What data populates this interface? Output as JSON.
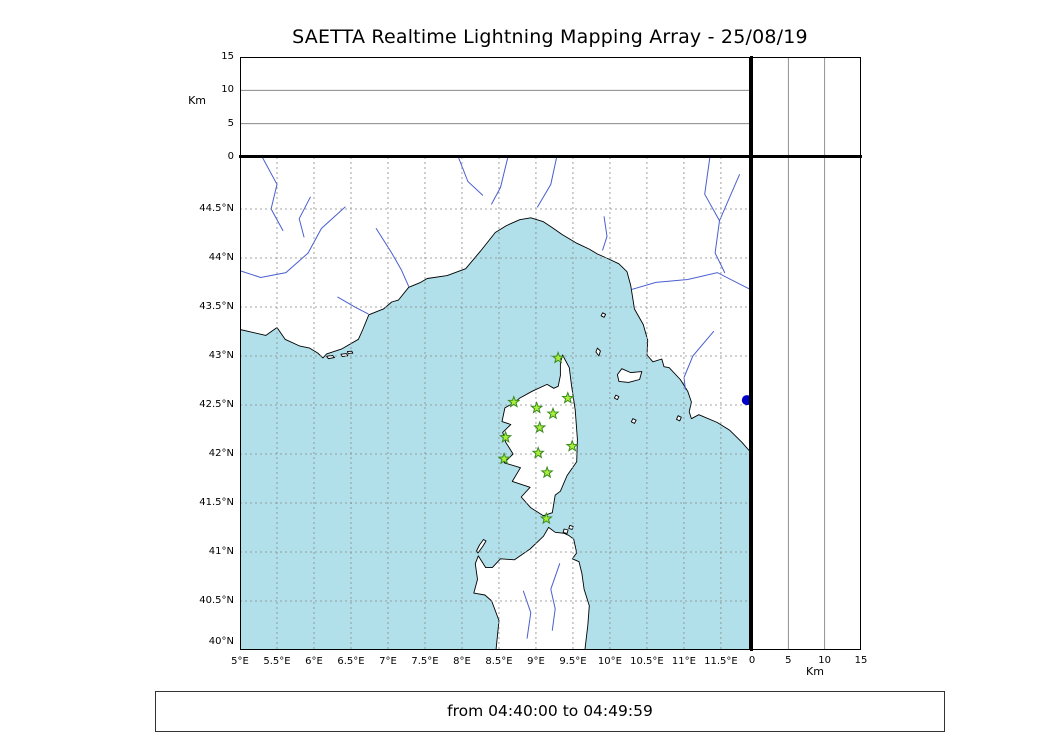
{
  "title": "SAETTA Realtime Lightning Mapping Array - 25/08/19",
  "footer": {
    "text": "from 04:40:00 to 04:49:59"
  },
  "alt_axis": {
    "label": "Km",
    "max": 15,
    "ticks": [
      0,
      5,
      10,
      15
    ]
  },
  "map": {
    "lon_range": [
      5.0,
      11.893
    ],
    "lat_range": [
      40.0,
      45.031
    ],
    "lon_ticks": [
      {
        "value": 5,
        "label": "5°E"
      },
      {
        "value": 5.5,
        "label": "5.5°E"
      },
      {
        "value": 6,
        "label": "6°E"
      },
      {
        "value": 6.5,
        "label": "6.5°E"
      },
      {
        "value": 7,
        "label": "7°E"
      },
      {
        "value": 7.5,
        "label": "7.5°E"
      },
      {
        "value": 8,
        "label": "8°E"
      },
      {
        "value": 8.5,
        "label": "8.5°E"
      },
      {
        "value": 9,
        "label": "9°E"
      },
      {
        "value": 9.5,
        "label": "9.5°E"
      },
      {
        "value": 10,
        "label": "10°E"
      },
      {
        "value": 10.5,
        "label": "10.5°E"
      },
      {
        "value": 11,
        "label": "11°E"
      },
      {
        "value": 11.5,
        "label": "11.5°E"
      }
    ],
    "lat_ticks": [
      {
        "value": 44.5,
        "label": "44.5°N"
      },
      {
        "value": 44,
        "label": "44°N"
      },
      {
        "value": 43.5,
        "label": "43.5°N"
      },
      {
        "value": 43,
        "label": "43°N"
      },
      {
        "value": 42.5,
        "label": "42.5°N"
      },
      {
        "value": 42,
        "label": "42°N"
      },
      {
        "value": 41.5,
        "label": "41.5°N"
      },
      {
        "value": 41,
        "label": "41°N"
      },
      {
        "value": 40.5,
        "label": "40.5°N"
      },
      {
        "value": 40,
        "label": "40°N"
      }
    ]
  },
  "stations": [
    {
      "lon": 9.3,
      "lat": 42.98
    },
    {
      "lon": 8.7,
      "lat": 42.53
    },
    {
      "lon": 9.01,
      "lat": 42.47
    },
    {
      "lon": 9.43,
      "lat": 42.57
    },
    {
      "lon": 9.23,
      "lat": 42.41
    },
    {
      "lon": 9.05,
      "lat": 42.27
    },
    {
      "lon": 8.59,
      "lat": 42.17
    },
    {
      "lon": 9.49,
      "lat": 42.08
    },
    {
      "lon": 8.57,
      "lat": 41.95
    },
    {
      "lon": 9.03,
      "lat": 42.01
    },
    {
      "lon": 9.15,
      "lat": 41.81
    },
    {
      "lon": 9.14,
      "lat": 41.34
    }
  ],
  "points": [
    {
      "lon": 11.85,
      "lat": 42.55
    }
  ],
  "colors": {
    "sea": "#b2e0ea",
    "land": "#ffffff",
    "coast": "#000000",
    "river": "#4a5fd0",
    "grid": "#888888",
    "panel_grid": "#777777",
    "station_fill": "#a8ee3a",
    "station_stroke": "#3a8a1e",
    "point": "#0000c8"
  }
}
